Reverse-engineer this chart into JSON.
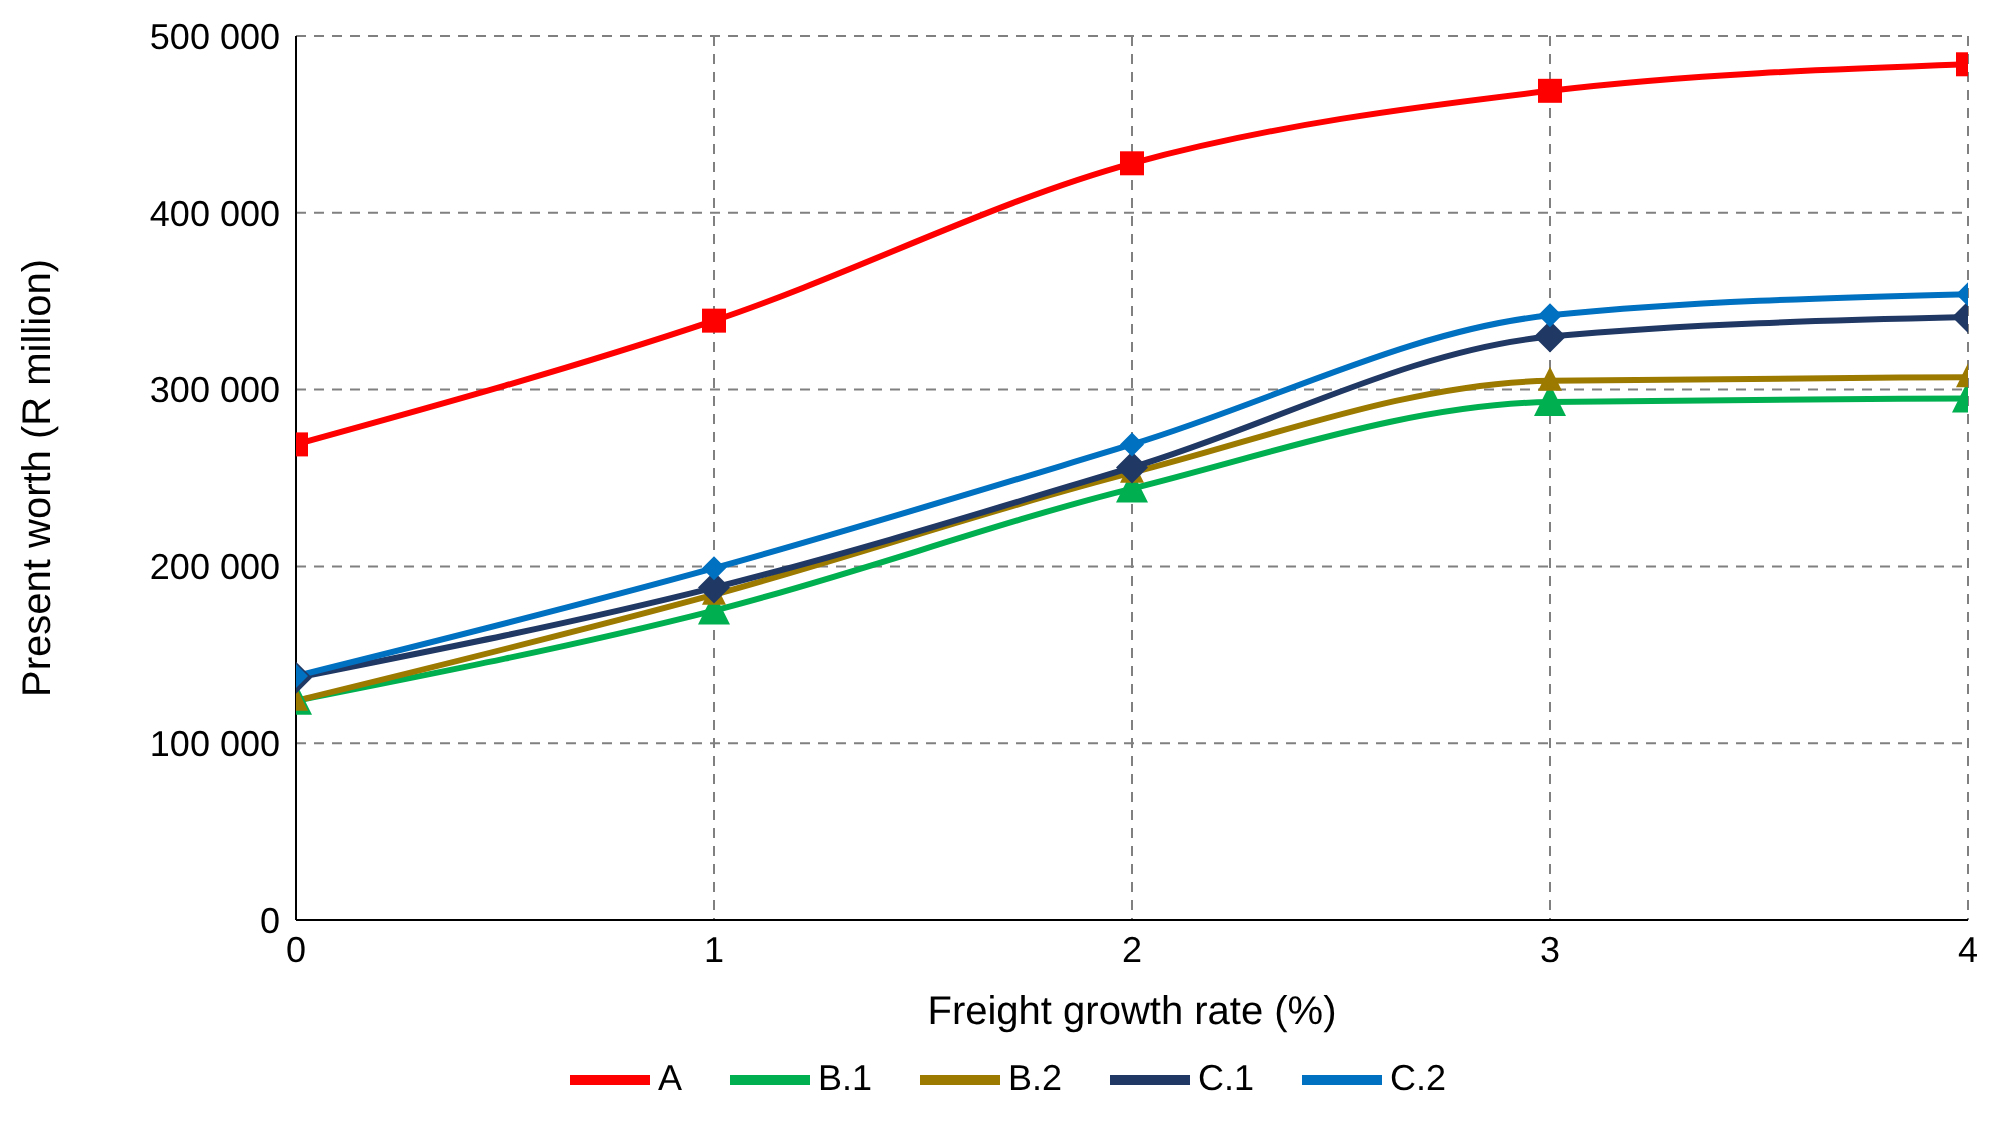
{
  "chart_data": {
    "type": "line",
    "xlabel": "Freight growth rate (%)",
    "ylabel": "Present worth (R million)",
    "x": [
      0,
      1,
      2,
      3,
      4
    ],
    "xlim": [
      0,
      4
    ],
    "xticks": [
      0,
      1,
      2,
      3,
      4
    ],
    "ylim": [
      0,
      500000
    ],
    "yticks": [
      {
        "value": 0,
        "label": "0"
      },
      {
        "value": 100000,
        "label": "100 000"
      },
      {
        "value": 200000,
        "label": "200 000"
      },
      {
        "value": 300000,
        "label": "300 000"
      },
      {
        "value": 400000,
        "label": "400 000"
      },
      {
        "value": 500000,
        "label": "500 000"
      }
    ],
    "grid": true,
    "legend": "bottom",
    "line_style": "solid",
    "series": [
      {
        "name": "A",
        "color": "#ff0000",
        "marker": "square",
        "values": [
          269000,
          339000,
          428000,
          469000,
          484000
        ]
      },
      {
        "name": "B.1",
        "color": "#00b050",
        "marker": "triangle",
        "values": [
          124000,
          175000,
          244000,
          293000,
          295000
        ]
      },
      {
        "name": "B.2",
        "color": "#9c7a00",
        "marker": "triangle",
        "values": [
          124000,
          184000,
          253000,
          305000,
          307000
        ]
      },
      {
        "name": "C.1",
        "color": "#203864",
        "marker": "diamond",
        "values": [
          137000,
          188000,
          256000,
          330000,
          341000
        ]
      },
      {
        "name": "C.2",
        "color": "#0070c0",
        "marker": "diamond",
        "values": [
          138000,
          199000,
          269000,
          342000,
          354000
        ]
      }
    ]
  }
}
